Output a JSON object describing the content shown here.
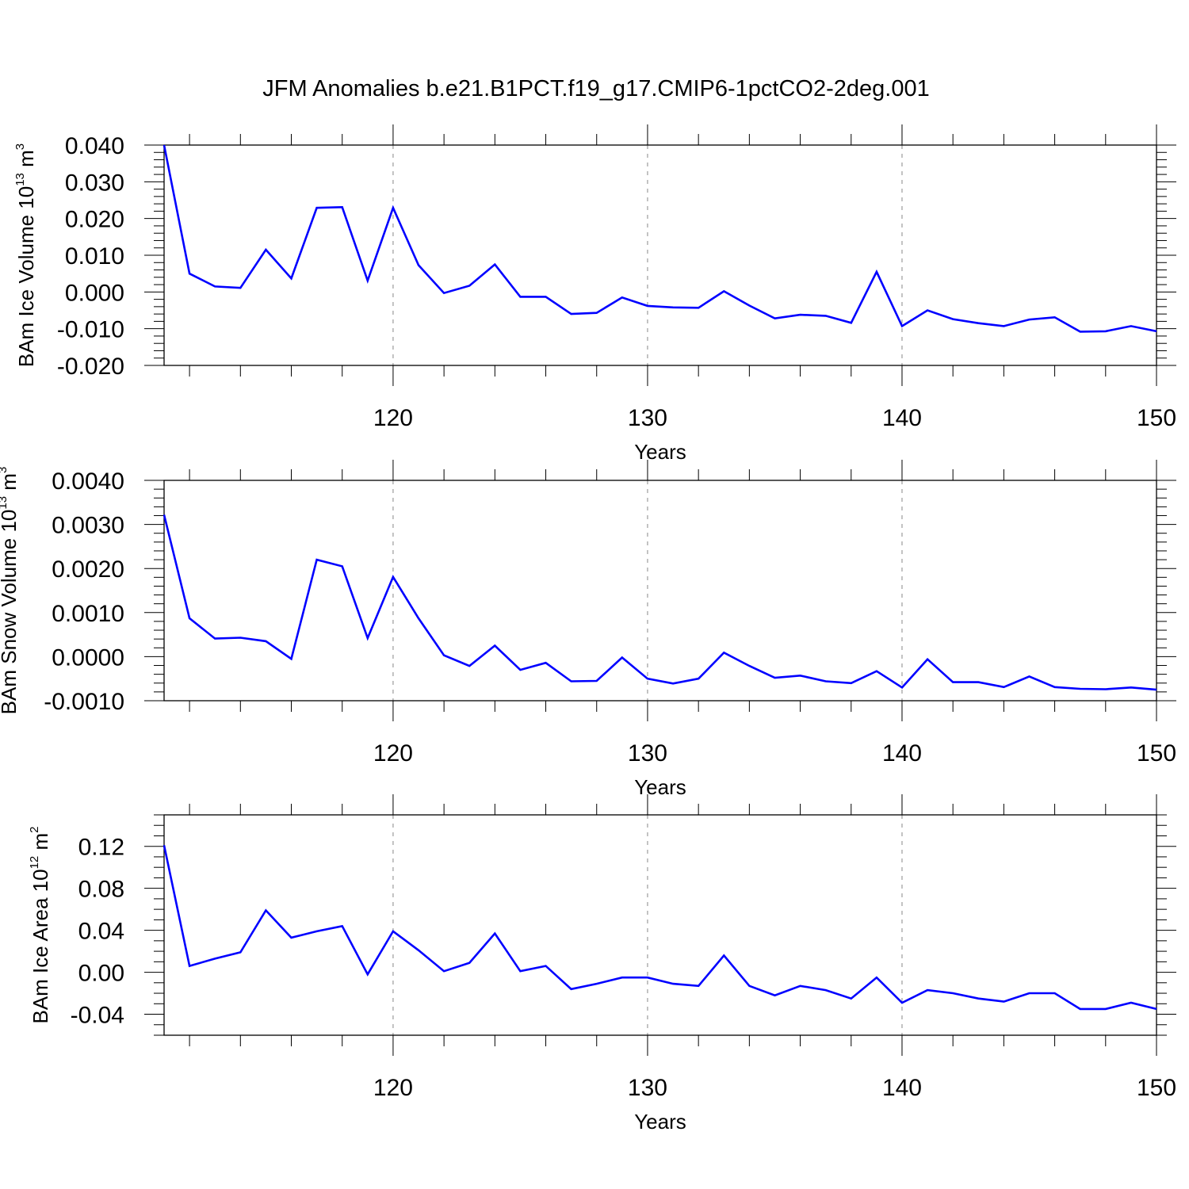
{
  "title": "JFM Anomalies b.e21.B1PCT.f19_g17.CMIP6-1pctCO2-2deg.001",
  "colors": {
    "line": "#0000ff",
    "axis": "#000000",
    "grid": "#888888"
  },
  "chart_data": [
    {
      "type": "line",
      "xlabel": "Years",
      "ylabel": {
        "prefix": "BAm Ice Volume 10",
        "exp": "13",
        "unit": " m",
        "unit_exp": "3"
      },
      "xlim": [
        111,
        150
      ],
      "ylim": [
        -0.02,
        0.04
      ],
      "xticks": [
        120,
        130,
        140,
        150
      ],
      "yticks": [
        -0.02,
        -0.01,
        0.0,
        0.01,
        0.02,
        0.03,
        0.04
      ],
      "yticklabels": [
        "-0.020",
        "-0.010",
        "0.000",
        "0.010",
        "0.020",
        "0.030",
        "0.040"
      ],
      "yminor_step": 0.002,
      "grid": "dashed vertical at major x ticks",
      "x": [
        111,
        112,
        113,
        114,
        115,
        116,
        117,
        118,
        119,
        120,
        121,
        122,
        123,
        124,
        125,
        126,
        127,
        128,
        129,
        130,
        131,
        132,
        133,
        134,
        135,
        136,
        137,
        138,
        139,
        140,
        141,
        142,
        143,
        144,
        145,
        146,
        147,
        148,
        149,
        150
      ],
      "values": [
        0.04,
        0.005,
        0.0015,
        0.0011,
        0.0115,
        0.0037,
        0.0229,
        0.0231,
        0.0031,
        0.0229,
        0.0073,
        -0.0003,
        0.0017,
        0.0075,
        -0.0013,
        -0.0013,
        -0.006,
        -0.0057,
        -0.0015,
        -0.0038,
        -0.0042,
        -0.0043,
        0.0002,
        -0.0037,
        -0.0072,
        -0.0062,
        -0.0065,
        -0.0084,
        0.0055,
        -0.0093,
        -0.005,
        -0.0074,
        -0.0085,
        -0.0093,
        -0.0075,
        -0.0069,
        -0.0108,
        -0.0107,
        -0.0093,
        -0.0107
      ]
    },
    {
      "type": "line",
      "xlabel": "Years",
      "ylabel": {
        "prefix": "BAm Snow Volume 10",
        "exp": "13",
        "unit": " m",
        "unit_exp": "3"
      },
      "xlim": [
        111,
        150
      ],
      "ylim": [
        -0.001,
        0.004
      ],
      "xticks": [
        120,
        130,
        140,
        150
      ],
      "yticks": [
        -0.001,
        0.0,
        0.001,
        0.002,
        0.003,
        0.004
      ],
      "yticklabels": [
        "-0.0010",
        "0.0000",
        "0.0010",
        "0.0020",
        "0.0030",
        "0.0040"
      ],
      "yminor_step": 0.0002,
      "grid": "dashed vertical at major x ticks",
      "x": [
        111,
        112,
        113,
        114,
        115,
        116,
        117,
        118,
        119,
        120,
        121,
        122,
        123,
        124,
        125,
        126,
        127,
        128,
        129,
        130,
        131,
        132,
        133,
        134,
        135,
        136,
        137,
        138,
        139,
        140,
        141,
        142,
        143,
        144,
        145,
        146,
        147,
        148,
        149,
        150
      ],
      "values": [
        0.00322,
        0.00087,
        0.00041,
        0.00043,
        0.00035,
        -5e-05,
        0.0022,
        0.00205,
        0.00042,
        0.00181,
        0.00087,
        3e-05,
        -0.00021,
        0.00025,
        -0.0003,
        -0.00014,
        -0.00056,
        -0.00055,
        -2e-05,
        -0.0005,
        -0.00061,
        -0.0005,
        9e-05,
        -0.00021,
        -0.00048,
        -0.00043,
        -0.00056,
        -0.0006,
        -0.00033,
        -0.0007,
        -6e-05,
        -0.00058,
        -0.00058,
        -0.00069,
        -0.00045,
        -0.00069,
        -0.00073,
        -0.00074,
        -0.0007,
        -0.00075
      ]
    },
    {
      "type": "line",
      "xlabel": "Years",
      "ylabel": {
        "prefix": "BAm Ice Area 10",
        "exp": "12",
        "unit": " m",
        "unit_exp": "2"
      },
      "xlim": [
        111,
        150
      ],
      "ylim": [
        -0.06,
        0.15
      ],
      "xticks": [
        120,
        130,
        140,
        150
      ],
      "yticks": [
        -0.04,
        0.0,
        0.04,
        0.08,
        0.12
      ],
      "yticklabels": [
        "-0.04",
        "0.00",
        "0.04",
        "0.08",
        "0.12"
      ],
      "yminor_step": 0.01,
      "grid": "dashed vertical at major x ticks",
      "x": [
        111,
        112,
        113,
        114,
        115,
        116,
        117,
        118,
        119,
        120,
        121,
        122,
        123,
        124,
        125,
        126,
        127,
        128,
        129,
        130,
        131,
        132,
        133,
        134,
        135,
        136,
        137,
        138,
        139,
        140,
        141,
        142,
        143,
        144,
        145,
        146,
        147,
        148,
        149,
        150
      ],
      "values": [
        0.121,
        0.006,
        0.013,
        0.019,
        0.059,
        0.033,
        0.039,
        0.044,
        -0.002,
        0.039,
        0.021,
        0.001,
        0.009,
        0.037,
        0.001,
        0.006,
        -0.016,
        -0.011,
        -0.005,
        -0.005,
        -0.011,
        -0.013,
        0.016,
        -0.013,
        -0.022,
        -0.013,
        -0.017,
        -0.025,
        -0.005,
        -0.029,
        -0.017,
        -0.02,
        -0.025,
        -0.028,
        -0.02,
        -0.02,
        -0.035,
        -0.035,
        -0.029,
        -0.035
      ]
    }
  ]
}
